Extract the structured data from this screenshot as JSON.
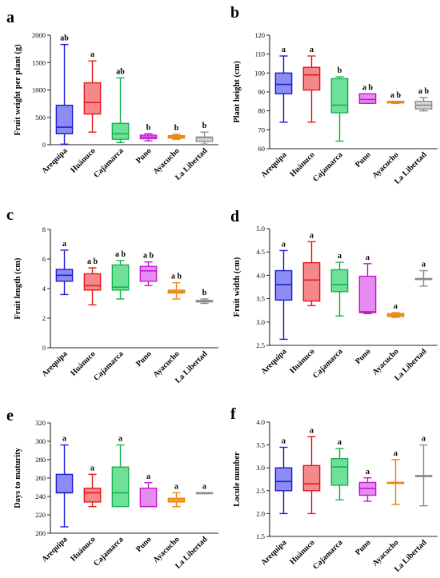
{
  "chart_data": [
    {
      "panel_letter": "a",
      "type": "box",
      "ylabel": "Fruit weight per plant (g)",
      "ylim": [
        0,
        2000
      ],
      "yticks": [
        0,
        500,
        1000,
        1500,
        2000
      ],
      "categories": [
        "Arequipa",
        "Huánuco",
        "Cajamarca",
        "Puno",
        "Ayacucho",
        "La Libertad"
      ],
      "boxes": [
        {
          "min": 10,
          "q1": 200,
          "median": 320,
          "q3": 720,
          "max": 1830
        },
        {
          "min": 230,
          "q1": 560,
          "median": 770,
          "q3": 1130,
          "max": 1530
        },
        {
          "min": 40,
          "q1": 100,
          "median": 200,
          "q3": 390,
          "max": 1220
        },
        {
          "min": 70,
          "q1": 110,
          "median": 140,
          "q3": 175,
          "max": 200
        },
        {
          "min": 100,
          "q1": 120,
          "median": 140,
          "q3": 165,
          "max": 190
        },
        {
          "min": 10,
          "q1": 60,
          "median": 130,
          "q3": 140,
          "max": 230
        }
      ],
      "letters": [
        "ab",
        "a",
        "ab",
        "b",
        "b",
        "b"
      ],
      "grid": false,
      "legend": "none"
    },
    {
      "panel_letter": "b",
      "type": "box",
      "ylabel": "Plant height (cm)",
      "ylim": [
        60,
        120
      ],
      "yticks": [
        60,
        70,
        80,
        90,
        100,
        110,
        120
      ],
      "categories": [
        "Arequipa",
        "Huánuco",
        "Cajamarca",
        "Puno",
        "Ayacucho",
        "La Libertad"
      ],
      "boxes": [
        {
          "min": 74,
          "q1": 89,
          "median": 94,
          "q3": 100,
          "max": 109
        },
        {
          "min": 74,
          "q1": 91,
          "median": 99,
          "q3": 103,
          "max": 109
        },
        {
          "min": 64,
          "q1": 79,
          "median": 83,
          "q3": 97,
          "max": 98
        },
        {
          "min": 84,
          "q1": 84,
          "median": 86,
          "q3": 89,
          "max": 89
        },
        {
          "min": 84,
          "q1": 84.2,
          "median": 84.5,
          "q3": 85,
          "max": 85
        },
        {
          "min": 80,
          "q1": 81,
          "median": 83,
          "q3": 85,
          "max": 87
        }
      ],
      "letters": [
        "a",
        "a",
        "b",
        "a b",
        "a b",
        "a b"
      ],
      "grid": false,
      "legend": "none"
    },
    {
      "panel_letter": "c",
      "type": "box",
      "ylabel": "Fruit length (cm)",
      "ylim": [
        0,
        8
      ],
      "yticks": [
        0,
        2,
        4,
        6,
        8
      ],
      "categories": [
        "Arequipa",
        "Huánuco",
        "Cajamarca",
        "Puno",
        "Ayacucho",
        "La Libertad"
      ],
      "boxes": [
        {
          "min": 3.6,
          "q1": 4.5,
          "median": 4.9,
          "q3": 5.3,
          "max": 6.6
        },
        {
          "min": 2.9,
          "q1": 3.9,
          "median": 4.2,
          "q3": 5.0,
          "max": 5.4
        },
        {
          "min": 3.3,
          "q1": 3.9,
          "median": 4.1,
          "q3": 5.6,
          "max": 5.9
        },
        {
          "min": 4.2,
          "q1": 4.5,
          "median": 5.2,
          "q3": 5.5,
          "max": 5.8
        },
        {
          "min": 3.3,
          "q1": 3.7,
          "median": 3.8,
          "q3": 3.9,
          "max": 4.4
        },
        {
          "min": 3.0,
          "q1": 3.1,
          "median": 3.15,
          "q3": 3.2,
          "max": 3.3
        }
      ],
      "letters": [
        "a",
        "a b",
        "a b",
        "a b",
        "a b",
        "b"
      ],
      "grid": false,
      "legend": "none"
    },
    {
      "panel_letter": "d",
      "type": "box",
      "ylabel": "Fruit width (cm)",
      "ylim": [
        2.5,
        5.0
      ],
      "yticks": [
        2.5,
        3.0,
        3.5,
        4.0,
        4.5,
        5.0
      ],
      "categories": [
        "Arequipa",
        "Huánuco",
        "Cajamarca",
        "Puno",
        "Ayacucho",
        "La Libertad"
      ],
      "boxes": [
        {
          "min": 2.63,
          "q1": 3.47,
          "median": 3.8,
          "q3": 4.1,
          "max": 4.53
        },
        {
          "min": 3.35,
          "q1": 3.45,
          "median": 3.9,
          "q3": 4.27,
          "max": 4.72
        },
        {
          "min": 3.13,
          "q1": 3.65,
          "median": 3.8,
          "q3": 4.12,
          "max": 4.28
        },
        {
          "min": 3.18,
          "q1": 3.2,
          "median": 3.22,
          "q3": 3.98,
          "max": 4.25
        },
        {
          "min": 3.1,
          "q1": 3.12,
          "median": 3.15,
          "q3": 3.18,
          "max": 3.2
        },
        {
          "min": 3.77,
          "q1": 3.93,
          "median": 3.93,
          "q3": 3.93,
          "max": 4.1
        }
      ],
      "letters": [
        "a",
        "a",
        "a",
        "a",
        "a",
        "a"
      ],
      "grid": false,
      "legend": "none"
    },
    {
      "panel_letter": "e",
      "type": "box",
      "ylabel": "Days to maturity",
      "ylim": [
        200,
        320
      ],
      "yticks": [
        200,
        220,
        240,
        260,
        280,
        300,
        320
      ],
      "categories": [
        "Arequipa",
        "Huánuco",
        "Cajamarca",
        "Puno",
        "Ayacucho",
        "La Libertad"
      ],
      "boxes": [
        {
          "min": 207,
          "q1": 244,
          "median": 244,
          "q3": 264,
          "max": 296
        },
        {
          "min": 229,
          "q1": 234,
          "median": 244,
          "q3": 249,
          "max": 264
        },
        {
          "min": 229,
          "q1": 229,
          "median": 244,
          "q3": 272,
          "max": 296
        },
        {
          "min": 229,
          "q1": 229,
          "median": 229,
          "q3": 249,
          "max": 255
        },
        {
          "min": 229,
          "q1": 234,
          "median": 236,
          "q3": 238,
          "max": 244
        },
        {
          "min": 244,
          "q1": 244,
          "median": 244,
          "q3": 244,
          "max": 244
        }
      ],
      "letters": [
        "a",
        "a",
        "a",
        "a",
        "a",
        "a"
      ],
      "grid": false,
      "legend": "none"
    },
    {
      "panel_letter": "f",
      "type": "box",
      "ylabel": "Locule number",
      "ylim": [
        1.5,
        4.0
      ],
      "yticks": [
        1.5,
        2.0,
        2.5,
        3.0,
        3.5,
        4.0
      ],
      "categories": [
        "Arequipa",
        "Huánuco",
        "Cajamarca",
        "Puno",
        "Ayacucho",
        "La Libertad"
      ],
      "boxes": [
        {
          "min": 2.0,
          "q1": 2.5,
          "median": 2.7,
          "q3": 3.0,
          "max": 3.45
        },
        {
          "min": 2.0,
          "q1": 2.5,
          "median": 2.65,
          "q3": 3.05,
          "max": 3.68
        },
        {
          "min": 2.3,
          "q1": 2.62,
          "median": 3.02,
          "q3": 3.2,
          "max": 3.42
        },
        {
          "min": 2.27,
          "q1": 2.4,
          "median": 2.55,
          "q3": 2.68,
          "max": 2.78
        },
        {
          "min": 2.2,
          "q1": 2.68,
          "median": 2.68,
          "q3": 2.68,
          "max": 3.18
        },
        {
          "min": 2.17,
          "q1": 2.83,
          "median": 2.83,
          "q3": 2.83,
          "max": 3.5
        }
      ],
      "letters": [
        "a",
        "a",
        "a",
        "a",
        "a",
        "a"
      ],
      "grid": false,
      "legend": "none"
    }
  ],
  "series_colors": [
    {
      "name": "Arequipa",
      "stroke": "#1f1fd6",
      "fill": "#8c8cf2"
    },
    {
      "name": "Huánuco",
      "stroke": "#e31a1c",
      "fill": "#f4888a"
    },
    {
      "name": "Cajamarca",
      "stroke": "#17b34a",
      "fill": "#6fe09a"
    },
    {
      "name": "Puno",
      "stroke": "#c21bd1",
      "fill": "#e68cf0"
    },
    {
      "name": "Ayacucho",
      "stroke": "#e8870f",
      "fill": "#f5b867"
    },
    {
      "name": "La Libertad",
      "stroke": "#8c8c8c",
      "fill": "#d6d6d6"
    }
  ],
  "accent_colors": {
    "axis": "#222222",
    "text": "#000000"
  }
}
